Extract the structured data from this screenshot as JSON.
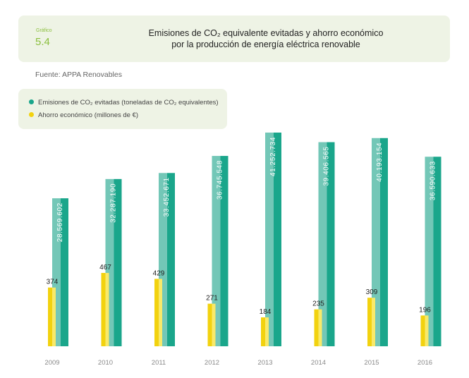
{
  "figure": {
    "kicker": "Gráfico",
    "number": "5.4",
    "title_line1": "Emisiones de CO₂ equivalente evitadas y ahorro económico",
    "title_line2": "por la producción de energía eléctrica renovable"
  },
  "source": "Fuente: APPA Renovables",
  "legend": [
    {
      "label": "Emisiones de CO₂ evitadas (toneladas de CO₂ equivalentes)",
      "color": "#1aa68b"
    },
    {
      "label": "Ahorro económico (millones de €)",
      "color": "#f2d20f"
    }
  ],
  "chart_data": {
    "type": "bar",
    "categories": [
      "2009",
      "2010",
      "2011",
      "2012",
      "2013",
      "2014",
      "2015",
      "2016"
    ],
    "series": [
      {
        "name": "Emisiones de CO₂ evitadas (toneladas de CO₂ equivalentes)",
        "values": [
          28569602,
          32287190,
          33452671,
          36745548,
          41252734,
          39406565,
          40193154,
          36590633
        ],
        "labels": [
          "28.569.602",
          "32.287.190",
          "33.452.671",
          "36.745.548",
          "41.252.734",
          "39.406.565",
          "40.193.154",
          "36.590.633"
        ],
        "color": "#1aa68b",
        "color_light": "#73c7b7"
      },
      {
        "name": "Ahorro económico (millones de €)",
        "values": [
          374,
          467,
          429,
          271,
          184,
          235,
          309,
          196
        ],
        "labels": [
          "374",
          "467",
          "429",
          "271",
          "184",
          "235",
          "309",
          "196"
        ],
        "color": "#f2d20f",
        "color_light": "#f8e96a"
      }
    ]
  }
}
